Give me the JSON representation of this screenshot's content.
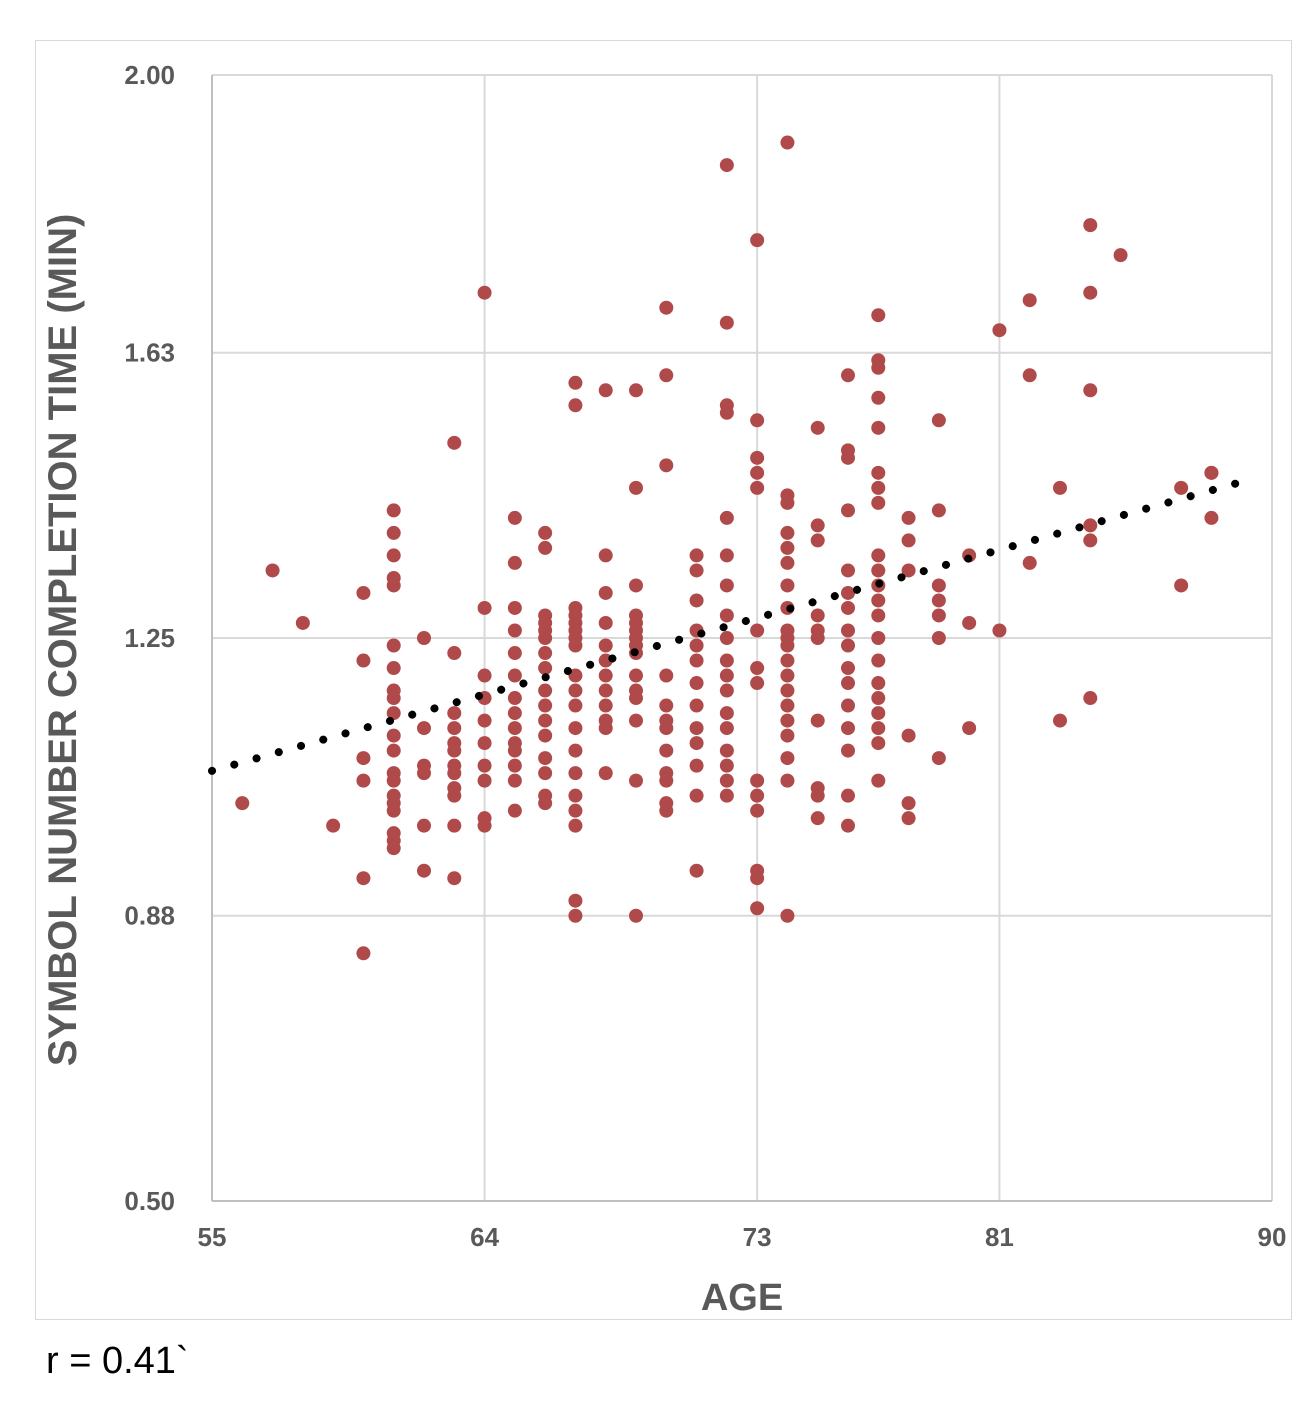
{
  "colors": {
    "point": "#b04a4a",
    "trend": "#000000",
    "grid": "#d9d9d9",
    "text": "#595959"
  },
  "annotation": "r = 0.41`",
  "chart_data": {
    "type": "scatter",
    "xlabel": "AGE",
    "ylabel": "SYMBOL NUMBER COMPLETION TIME (MIN)",
    "xlim": [
      55,
      90
    ],
    "ylim": [
      0.5,
      2.0
    ],
    "x_ticks": [
      55,
      64,
      73,
      81,
      90
    ],
    "x_tick_labels": [
      "55",
      "64",
      "73",
      "81",
      "90"
    ],
    "y_ticks": [
      0.5,
      0.88,
      1.25,
      1.63,
      2.0
    ],
    "y_tick_labels": [
      "0.50",
      "0.88",
      "1.25",
      "1.63",
      "2.00"
    ],
    "grid": true,
    "trendline": {
      "style": "dotted",
      "x": [
        55,
        89
      ],
      "y": [
        1.073,
        1.458
      ]
    },
    "points": [
      [
        56,
        1.03
      ],
      [
        57,
        1.34
      ],
      [
        58,
        1.27
      ],
      [
        59,
        1.0
      ],
      [
        60,
        1.31
      ],
      [
        60,
        1.22
      ],
      [
        60,
        1.09
      ],
      [
        60,
        1.06
      ],
      [
        60,
        0.93
      ],
      [
        60,
        0.83
      ],
      [
        61,
        1.42
      ],
      [
        61,
        1.39
      ],
      [
        61,
        1.36
      ],
      [
        61,
        1.33
      ],
      [
        61,
        1.32
      ],
      [
        61,
        1.24
      ],
      [
        61,
        1.21
      ],
      [
        61,
        1.18
      ],
      [
        61,
        1.17
      ],
      [
        61,
        1.15
      ],
      [
        61,
        1.12
      ],
      [
        61,
        1.1
      ],
      [
        61,
        1.07
      ],
      [
        61,
        1.06
      ],
      [
        61,
        1.04
      ],
      [
        61,
        1.03
      ],
      [
        61,
        1.02
      ],
      [
        61,
        0.99
      ],
      [
        61,
        0.98
      ],
      [
        61,
        0.97
      ],
      [
        62,
        1.25
      ],
      [
        62,
        1.13
      ],
      [
        62,
        1.08
      ],
      [
        62,
        1.07
      ],
      [
        62,
        1.0
      ],
      [
        62,
        0.94
      ],
      [
        63,
        1.51
      ],
      [
        63,
        1.23
      ],
      [
        63,
        1.15
      ],
      [
        63,
        1.13
      ],
      [
        63,
        1.11
      ],
      [
        63,
        1.1
      ],
      [
        63,
        1.08
      ],
      [
        63,
        1.07
      ],
      [
        63,
        1.05
      ],
      [
        63,
        1.04
      ],
      [
        63,
        1.0
      ],
      [
        63,
        0.93
      ],
      [
        64,
        1.71
      ],
      [
        64,
        1.29
      ],
      [
        64,
        1.2
      ],
      [
        64,
        1.17
      ],
      [
        64,
        1.14
      ],
      [
        64,
        1.11
      ],
      [
        64,
        1.08
      ],
      [
        64,
        1.06
      ],
      [
        64,
        1.01
      ],
      [
        64,
        1.0
      ],
      [
        65,
        1.41
      ],
      [
        65,
        1.35
      ],
      [
        65,
        1.29
      ],
      [
        65,
        1.26
      ],
      [
        65,
        1.23
      ],
      [
        65,
        1.2
      ],
      [
        65,
        1.17
      ],
      [
        65,
        1.15
      ],
      [
        65,
        1.13
      ],
      [
        65,
        1.11
      ],
      [
        65,
        1.1
      ],
      [
        65,
        1.08
      ],
      [
        65,
        1.06
      ],
      [
        65,
        1.02
      ],
      [
        66,
        1.39
      ],
      [
        66,
        1.37
      ],
      [
        66,
        1.28
      ],
      [
        66,
        1.27
      ],
      [
        66,
        1.26
      ],
      [
        66,
        1.25
      ],
      [
        66,
        1.23
      ],
      [
        66,
        1.21
      ],
      [
        66,
        1.18
      ],
      [
        66,
        1.16
      ],
      [
        66,
        1.14
      ],
      [
        66,
        1.12
      ],
      [
        66,
        1.09
      ],
      [
        66,
        1.07
      ],
      [
        66,
        1.04
      ],
      [
        66,
        1.03
      ],
      [
        67,
        1.59
      ],
      [
        67,
        1.56
      ],
      [
        67,
        1.29
      ],
      [
        67,
        1.28
      ],
      [
        67,
        1.27
      ],
      [
        67,
        1.26
      ],
      [
        67,
        1.25
      ],
      [
        67,
        1.24
      ],
      [
        67,
        1.2
      ],
      [
        67,
        1.18
      ],
      [
        67,
        1.16
      ],
      [
        67,
        1.13
      ],
      [
        67,
        1.1
      ],
      [
        67,
        1.07
      ],
      [
        67,
        1.04
      ],
      [
        67,
        1.02
      ],
      [
        67,
        1.0
      ],
      [
        67,
        0.9
      ],
      [
        67,
        0.88
      ],
      [
        68,
        1.58
      ],
      [
        68,
        1.36
      ],
      [
        68,
        1.31
      ],
      [
        68,
        1.27
      ],
      [
        68,
        1.24
      ],
      [
        68,
        1.22
      ],
      [
        68,
        1.2
      ],
      [
        68,
        1.18
      ],
      [
        68,
        1.16
      ],
      [
        68,
        1.14
      ],
      [
        68,
        1.13
      ],
      [
        68,
        1.07
      ],
      [
        69,
        1.58
      ],
      [
        69,
        1.45
      ],
      [
        69,
        1.32
      ],
      [
        69,
        1.28
      ],
      [
        69,
        1.27
      ],
      [
        69,
        1.26
      ],
      [
        69,
        1.25
      ],
      [
        69,
        1.24
      ],
      [
        69,
        1.23
      ],
      [
        69,
        1.2
      ],
      [
        69,
        1.18
      ],
      [
        69,
        1.17
      ],
      [
        69,
        1.14
      ],
      [
        69,
        1.06
      ],
      [
        69,
        0.88
      ],
      [
        70,
        1.69
      ],
      [
        70,
        1.6
      ],
      [
        70,
        1.48
      ],
      [
        70,
        1.2
      ],
      [
        70,
        1.16
      ],
      [
        70,
        1.14
      ],
      [
        70,
        1.13
      ],
      [
        70,
        1.1
      ],
      [
        70,
        1.07
      ],
      [
        70,
        1.06
      ],
      [
        70,
        1.03
      ],
      [
        70,
        1.02
      ],
      [
        71,
        1.36
      ],
      [
        71,
        1.34
      ],
      [
        71,
        1.3
      ],
      [
        71,
        1.26
      ],
      [
        71,
        1.24
      ],
      [
        71,
        1.22
      ],
      [
        71,
        1.19
      ],
      [
        71,
        1.16
      ],
      [
        71,
        1.13
      ],
      [
        71,
        1.11
      ],
      [
        71,
        1.08
      ],
      [
        71,
        1.04
      ],
      [
        71,
        0.94
      ],
      [
        72,
        1.88
      ],
      [
        72,
        1.67
      ],
      [
        72,
        1.56
      ],
      [
        72,
        1.55
      ],
      [
        72,
        1.41
      ],
      [
        72,
        1.36
      ],
      [
        72,
        1.32
      ],
      [
        72,
        1.28
      ],
      [
        72,
        1.25
      ],
      [
        72,
        1.22
      ],
      [
        72,
        1.2
      ],
      [
        72,
        1.18
      ],
      [
        72,
        1.15
      ],
      [
        72,
        1.13
      ],
      [
        72,
        1.1
      ],
      [
        72,
        1.08
      ],
      [
        72,
        1.06
      ],
      [
        72,
        1.04
      ],
      [
        73,
        1.78
      ],
      [
        73,
        1.54
      ],
      [
        73,
        1.49
      ],
      [
        73,
        1.47
      ],
      [
        73,
        1.45
      ],
      [
        73,
        1.26
      ],
      [
        73,
        1.21
      ],
      [
        73,
        1.19
      ],
      [
        73,
        1.06
      ],
      [
        73,
        1.04
      ],
      [
        73,
        1.02
      ],
      [
        73,
        0.94
      ],
      [
        73,
        0.93
      ],
      [
        73,
        0.89
      ],
      [
        74,
        1.91
      ],
      [
        74,
        1.44
      ],
      [
        74,
        1.43
      ],
      [
        74,
        1.39
      ],
      [
        74,
        1.37
      ],
      [
        74,
        1.35
      ],
      [
        74,
        1.32
      ],
      [
        74,
        1.29
      ],
      [
        74,
        1.26
      ],
      [
        74,
        1.25
      ],
      [
        74,
        1.24
      ],
      [
        74,
        1.22
      ],
      [
        74,
        1.2
      ],
      [
        74,
        1.18
      ],
      [
        74,
        1.16
      ],
      [
        74,
        1.14
      ],
      [
        74,
        1.12
      ],
      [
        74,
        1.09
      ],
      [
        74,
        1.06
      ],
      [
        74,
        0.88
      ],
      [
        75,
        1.53
      ],
      [
        75,
        1.4
      ],
      [
        75,
        1.38
      ],
      [
        75,
        1.28
      ],
      [
        75,
        1.26
      ],
      [
        75,
        1.25
      ],
      [
        75,
        1.14
      ],
      [
        75,
        1.05
      ],
      [
        75,
        1.04
      ],
      [
        75,
        1.01
      ],
      [
        76,
        1.6
      ],
      [
        76,
        1.5
      ],
      [
        76,
        1.49
      ],
      [
        76,
        1.42
      ],
      [
        76,
        1.34
      ],
      [
        76,
        1.31
      ],
      [
        76,
        1.29
      ],
      [
        76,
        1.26
      ],
      [
        76,
        1.24
      ],
      [
        76,
        1.21
      ],
      [
        76,
        1.19
      ],
      [
        76,
        1.16
      ],
      [
        76,
        1.13
      ],
      [
        76,
        1.1
      ],
      [
        76,
        1.04
      ],
      [
        76,
        1.0
      ],
      [
        77,
        1.68
      ],
      [
        77,
        1.62
      ],
      [
        77,
        1.61
      ],
      [
        77,
        1.57
      ],
      [
        77,
        1.53
      ],
      [
        77,
        1.47
      ],
      [
        77,
        1.45
      ],
      [
        77,
        1.43
      ],
      [
        77,
        1.36
      ],
      [
        77,
        1.34
      ],
      [
        77,
        1.32
      ],
      [
        77,
        1.3
      ],
      [
        77,
        1.28
      ],
      [
        77,
        1.25
      ],
      [
        77,
        1.22
      ],
      [
        77,
        1.19
      ],
      [
        77,
        1.17
      ],
      [
        77,
        1.15
      ],
      [
        77,
        1.13
      ],
      [
        77,
        1.11
      ],
      [
        77,
        1.06
      ],
      [
        78,
        1.41
      ],
      [
        78,
        1.38
      ],
      [
        78,
        1.34
      ],
      [
        78,
        1.12
      ],
      [
        78,
        1.03
      ],
      [
        78,
        1.01
      ],
      [
        79,
        1.54
      ],
      [
        79,
        1.42
      ],
      [
        79,
        1.32
      ],
      [
        79,
        1.3
      ],
      [
        79,
        1.28
      ],
      [
        79,
        1.25
      ],
      [
        79,
        1.09
      ],
      [
        80,
        1.36
      ],
      [
        80,
        1.27
      ],
      [
        80,
        1.13
      ],
      [
        81,
        1.66
      ],
      [
        81,
        1.26
      ],
      [
        82,
        1.7
      ],
      [
        82,
        1.6
      ],
      [
        82,
        1.35
      ],
      [
        83,
        1.45
      ],
      [
        83,
        1.14
      ],
      [
        84,
        1.8
      ],
      [
        84,
        1.71
      ],
      [
        84,
        1.58
      ],
      [
        84,
        1.4
      ],
      [
        84,
        1.38
      ],
      [
        84,
        1.17
      ],
      [
        85,
        1.76
      ],
      [
        87,
        1.45
      ],
      [
        87,
        1.32
      ],
      [
        88,
        1.47
      ],
      [
        88,
        1.47
      ],
      [
        88,
        1.41
      ]
    ]
  }
}
